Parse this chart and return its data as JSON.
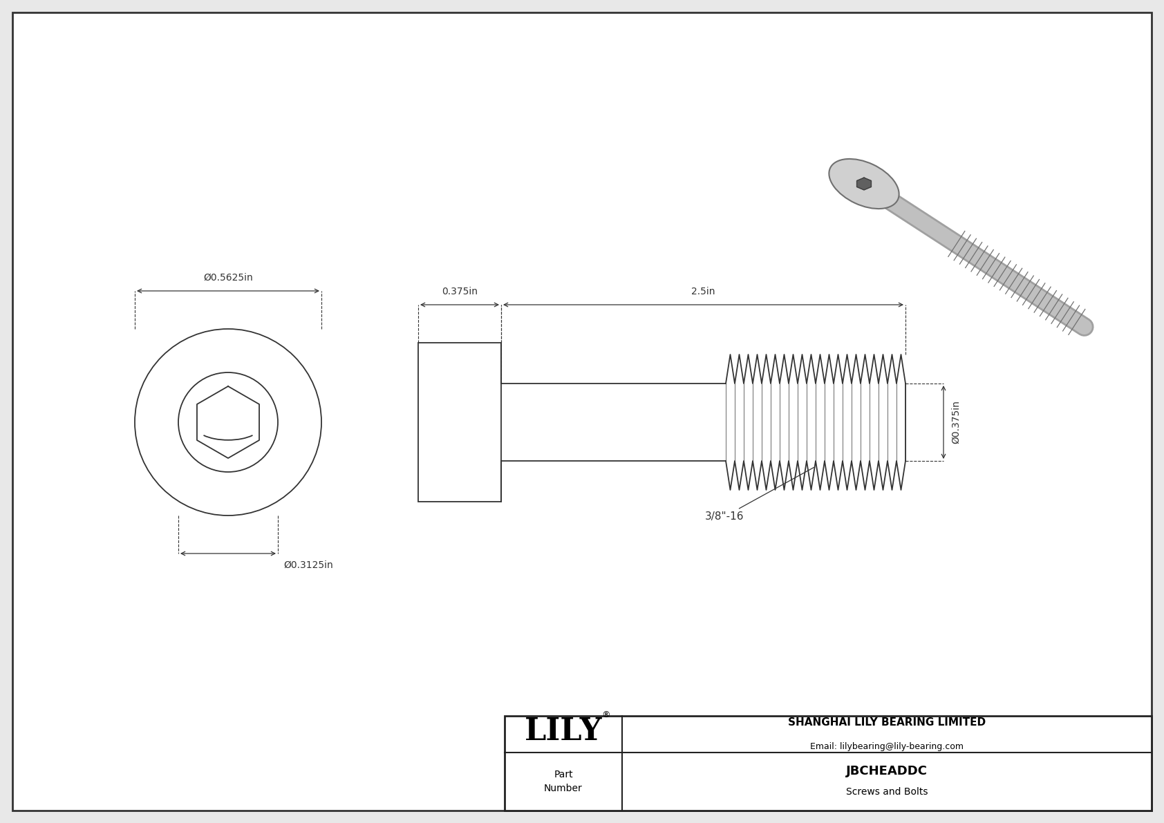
{
  "bg_color": "#e8e8e8",
  "drawing_bg": "#ffffff",
  "border_color": "#333333",
  "line_color": "#333333",
  "dim_color": "#333333",
  "title": "JBCHEADDC",
  "subtitle": "Screws and Bolts",
  "company": "SHANGHAI LILY BEARING LIMITED",
  "email": "Email: lilybearing@lily-bearing.com",
  "part_label": "Part\nNumber",
  "dim_head_diameter": "Ø0.5625in",
  "dim_socket_diameter": "Ø0.3125in",
  "dim_head_length": "0.375in",
  "dim_body_length": "2.5in",
  "dim_bolt_diameter": "Ø0.375in",
  "dim_thread": "3/8\"-16",
  "fig_width": 16.84,
  "fig_height": 11.91,
  "dpi": 100
}
